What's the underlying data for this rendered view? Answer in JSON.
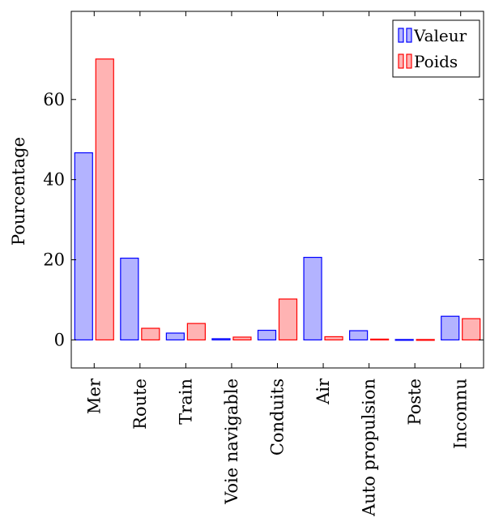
{
  "chart_data": {
    "type": "bar",
    "title": "",
    "xlabel": "",
    "ylabel": "Pourcentage",
    "categories": [
      "Mer",
      "Route",
      "Train",
      "Voie navigable",
      "Conduits",
      "Air",
      "Auto propulsion",
      "Poste",
      "Inconnu"
    ],
    "series": [
      {
        "name": "Valeur",
        "values": [
          46.7,
          20.4,
          1.7,
          0.3,
          2.4,
          20.6,
          2.3,
          0.1,
          5.9
        ],
        "fill": "#b3b3ff",
        "stroke": "#0000ff"
      },
      {
        "name": "Poids",
        "values": [
          70.1,
          2.9,
          4.1,
          0.7,
          10.2,
          0.8,
          0.2,
          0.1,
          5.3
        ],
        "fill": "#ffb3b3",
        "stroke": "#ff0000"
      }
    ],
    "ylim": [
      -7,
      82
    ],
    "yticks": [
      0,
      20,
      40,
      60
    ],
    "grid": false,
    "legend": "top-right"
  }
}
